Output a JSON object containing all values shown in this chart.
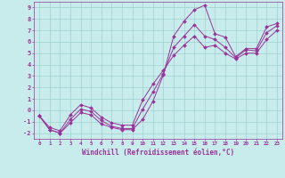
{
  "xlabel": "Windchill (Refroidissement éolien,°C)",
  "bg_color": "#c8ecec",
  "line_color": "#993399",
  "marker_color": "#993399",
  "grid_color": "#a0d0d0",
  "xlim": [
    -0.5,
    23.5
  ],
  "ylim": [
    -2.5,
    9.5
  ],
  "xticks": [
    0,
    1,
    2,
    3,
    4,
    5,
    6,
    7,
    8,
    9,
    10,
    11,
    12,
    13,
    14,
    15,
    16,
    17,
    18,
    19,
    20,
    21,
    22,
    23
  ],
  "yticks": [
    -2,
    -1,
    0,
    1,
    2,
    3,
    4,
    5,
    6,
    7,
    8,
    9
  ],
  "series": [
    {
      "x": [
        0,
        1,
        2,
        3,
        4,
        5,
        6,
        7,
        8,
        9,
        10,
        11,
        12,
        13,
        14,
        15,
        16,
        17,
        18,
        19,
        20,
        21,
        22,
        23
      ],
      "y": [
        -0.5,
        -1.7,
        -2.0,
        -1.1,
        -0.2,
        -0.4,
        -1.2,
        -1.5,
        -1.7,
        -1.7,
        -0.8,
        0.8,
        3.1,
        6.5,
        7.8,
        8.8,
        9.2,
        6.7,
        6.4,
        4.7,
        5.4,
        5.4,
        7.3,
        7.6
      ]
    },
    {
      "x": [
        0,
        1,
        2,
        3,
        4,
        5,
        6,
        7,
        8,
        9,
        10,
        11,
        12,
        13,
        14,
        15,
        16,
        17,
        18,
        19,
        20,
        21,
        22,
        23
      ],
      "y": [
        -0.5,
        -1.7,
        -2.0,
        -0.8,
        0.1,
        -0.1,
        -0.9,
        -1.4,
        -1.6,
        -1.6,
        0.1,
        1.6,
        3.2,
        5.5,
        6.5,
        7.5,
        6.5,
        6.2,
        5.5,
        4.6,
        5.3,
        5.2,
        6.8,
        7.4
      ]
    },
    {
      "x": [
        0,
        1,
        2,
        3,
        4,
        5,
        6,
        7,
        8,
        9,
        10,
        11,
        12,
        13,
        14,
        15,
        16,
        17,
        18,
        19,
        20,
        21,
        22,
        23
      ],
      "y": [
        -0.5,
        -1.5,
        -1.8,
        -0.4,
        0.5,
        0.2,
        -0.6,
        -1.1,
        -1.3,
        -1.3,
        0.9,
        2.3,
        3.5,
        4.8,
        5.7,
        6.5,
        5.5,
        5.7,
        5.0,
        4.5,
        5.0,
        5.0,
        6.2,
        7.0
      ]
    }
  ]
}
